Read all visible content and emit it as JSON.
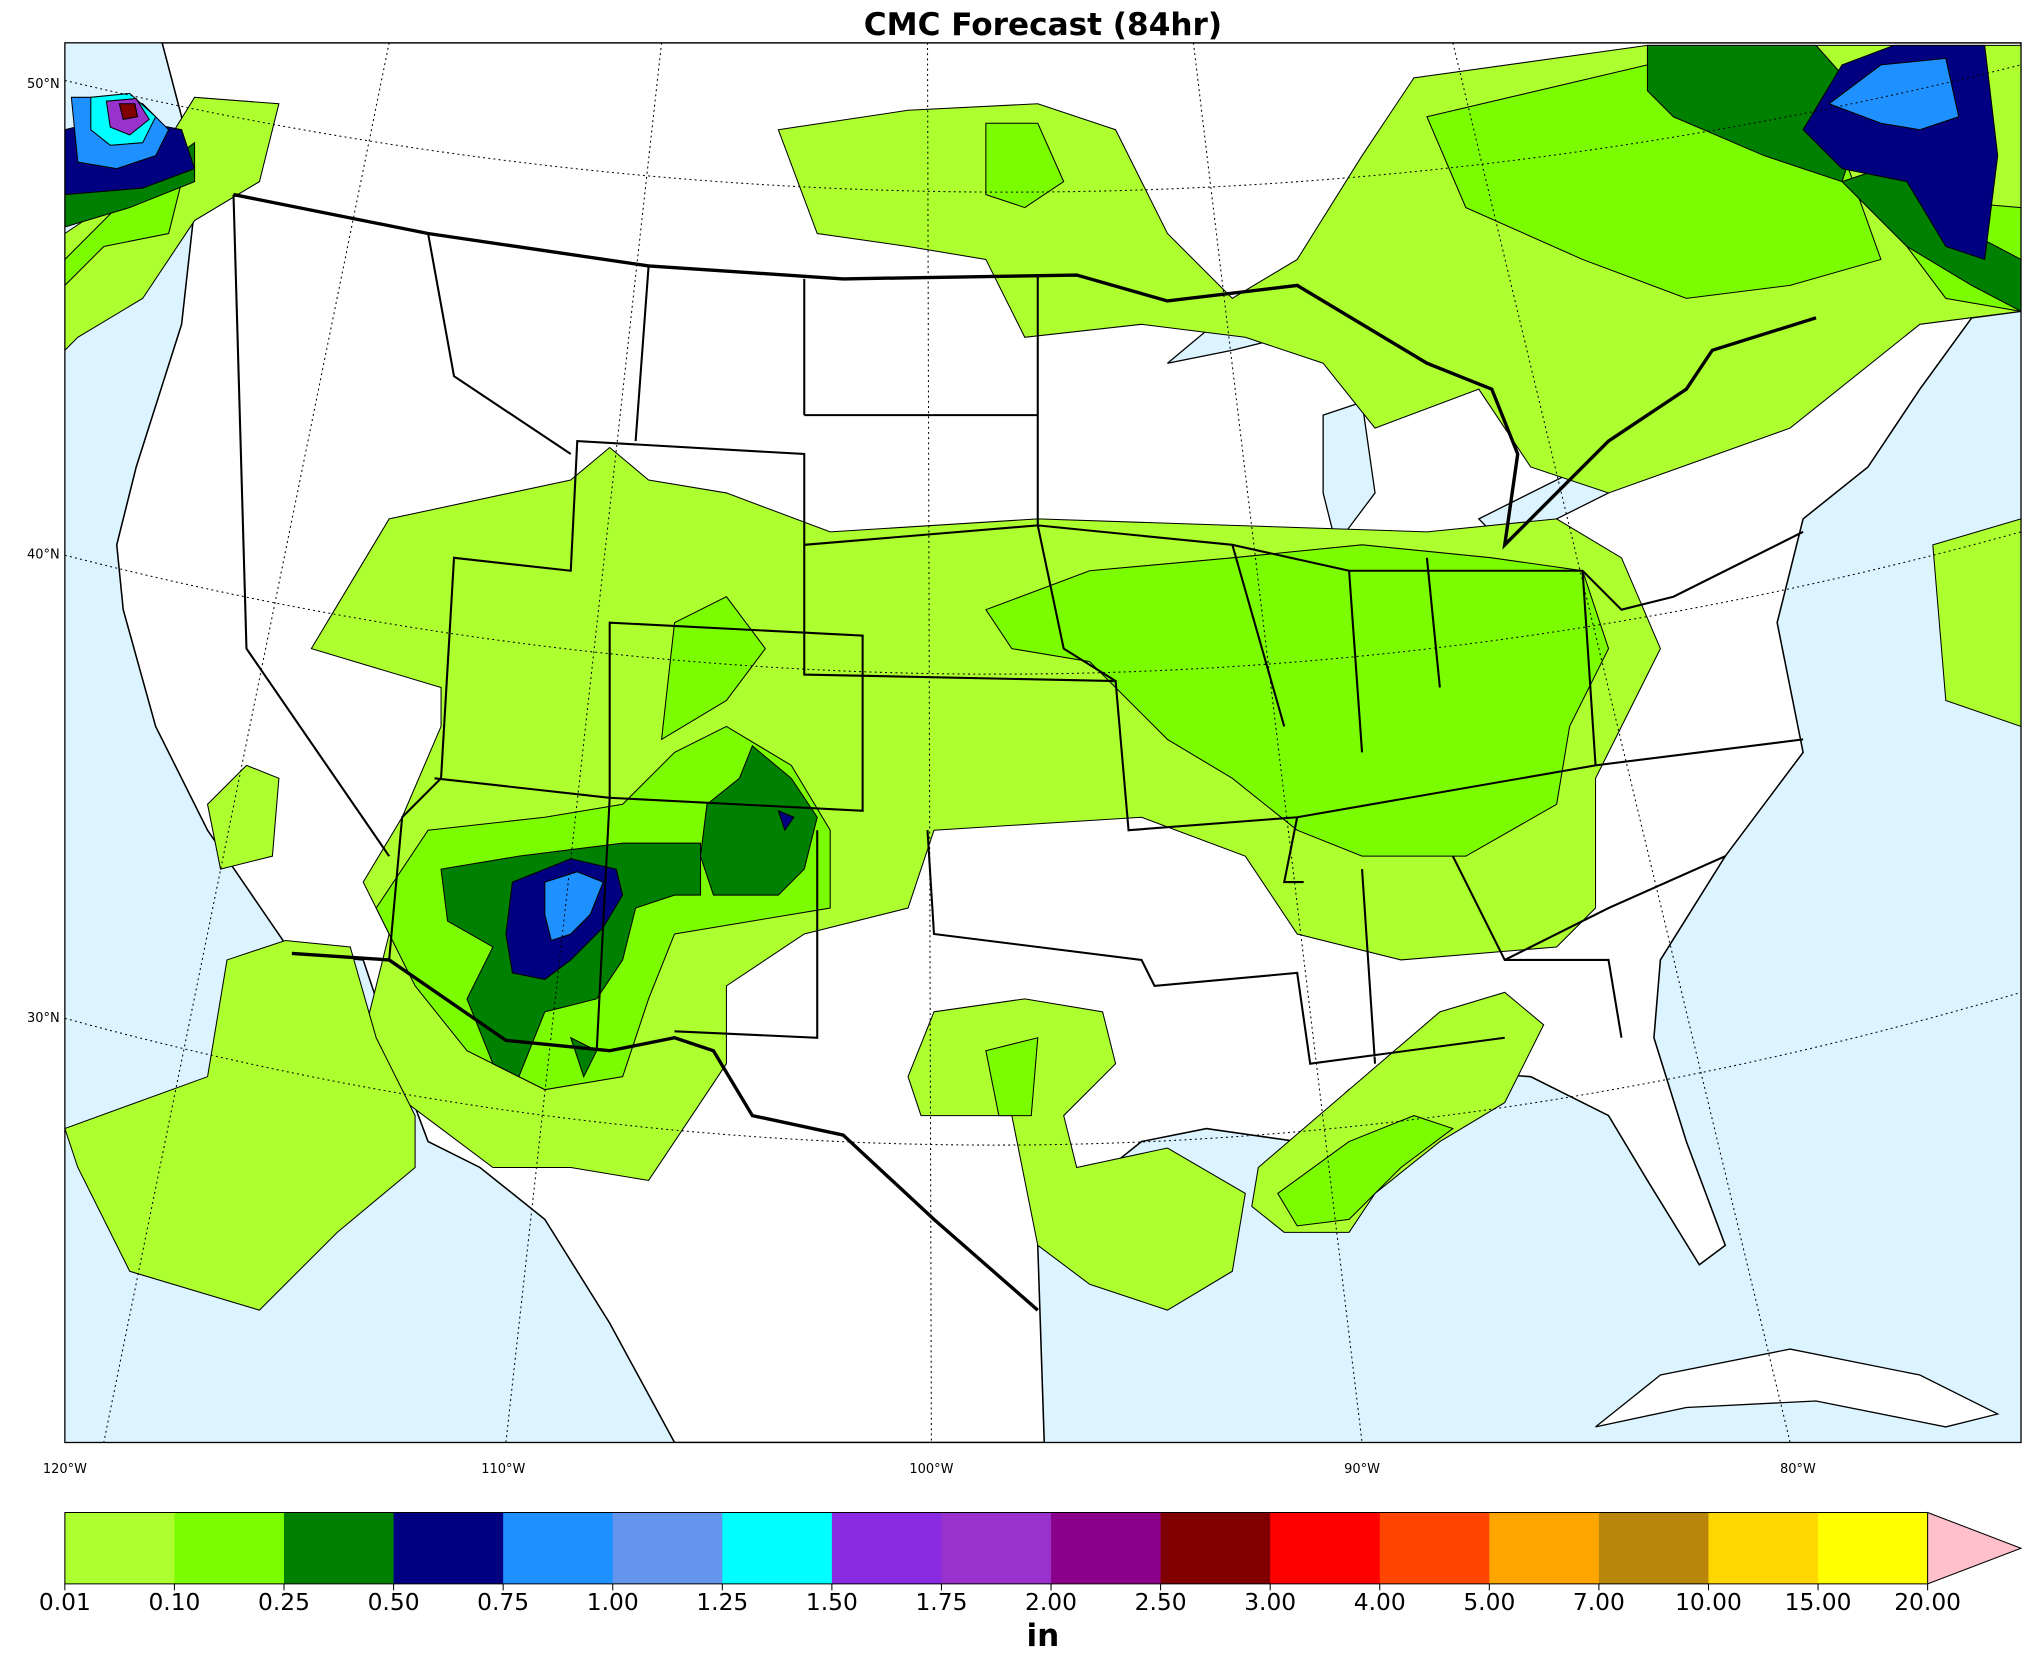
{
  "header": {
    "title": "CMC Forecast (84hr)"
  },
  "map": {
    "lat_labels": [
      "50°N",
      "40°N",
      "30°N"
    ],
    "lon_labels": [
      "120°W",
      "110°W",
      "100°W",
      "90°W",
      "80°W"
    ]
  },
  "colorbar": {
    "ticks": [
      "0.01",
      "0.10",
      "0.25",
      "0.50",
      "0.75",
      "1.00",
      "1.25",
      "1.50",
      "1.75",
      "2.00",
      "2.50",
      "3.00",
      "4.00",
      "5.00",
      "7.00",
      "10.00",
      "15.00",
      "20.00"
    ],
    "colors": [
      "#adff2f",
      "#7cfc00",
      "#008000",
      "#000080",
      "#1e90ff",
      "#6495ed",
      "#00ffff",
      "#8a2be2",
      "#9932cc",
      "#8b008b",
      "#800000",
      "#ff0000",
      "#ff4500",
      "#ffa500",
      "#b8860b",
      "#ffd700",
      "#ffff00",
      "#ffc0cb"
    ],
    "unit": "in"
  }
}
